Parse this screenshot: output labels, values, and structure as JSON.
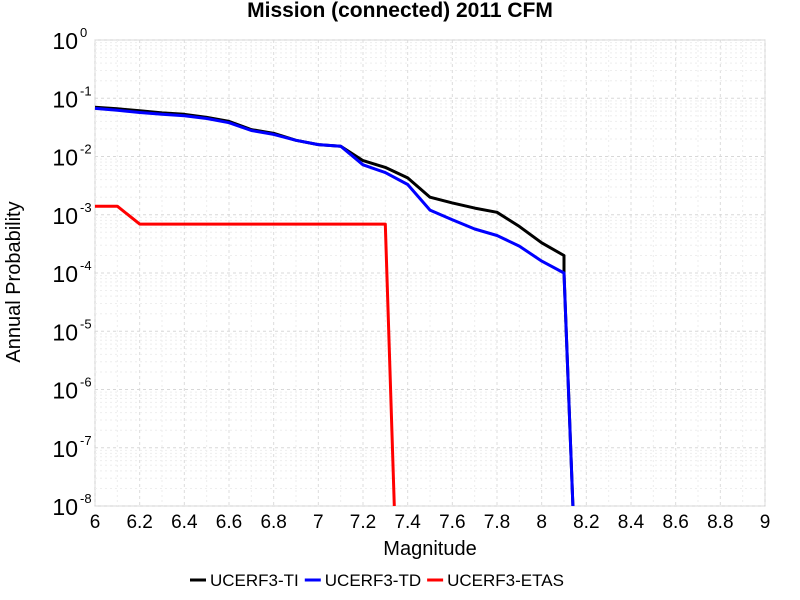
{
  "chart_data": {
    "type": "line",
    "title": "Mission (connected) 2011 CFM",
    "xlabel": "Magnitude",
    "ylabel": "Annual Probability",
    "xlim": [
      6,
      9
    ],
    "ylim": [
      1e-08,
      1
    ],
    "yscale": "log",
    "x_ticks": [
      "6",
      "6.2",
      "6.4",
      "6.6",
      "6.8",
      "7",
      "7.2",
      "7.4",
      "7.6",
      "7.8",
      "8",
      "8.2",
      "8.4",
      "8.6",
      "8.8",
      "9"
    ],
    "y_ticks": [
      {
        "base": "10",
        "exp": "-8"
      },
      {
        "base": "10",
        "exp": "-7"
      },
      {
        "base": "10",
        "exp": "-6"
      },
      {
        "base": "10",
        "exp": "-5"
      },
      {
        "base": "10",
        "exp": "-4"
      },
      {
        "base": "10",
        "exp": "-3"
      },
      {
        "base": "10",
        "exp": "-2"
      },
      {
        "base": "10",
        "exp": "-1"
      },
      {
        "base": "10",
        "exp": "0"
      }
    ],
    "grid": true,
    "legend_position": "bottom",
    "series": [
      {
        "name": "UCERF3-TI",
        "color": "#000000",
        "x": [
          6.0,
          6.1,
          6.2,
          6.3,
          6.4,
          6.5,
          6.6,
          6.7,
          6.8,
          6.9,
          7.0,
          7.1,
          7.2,
          7.3,
          7.4,
          7.5,
          7.6,
          7.7,
          7.8,
          7.9,
          8.0,
          8.1,
          8.1,
          8.14
        ],
        "y": [
          0.07,
          0.066,
          0.061,
          0.056,
          0.053,
          0.047,
          0.04,
          0.029,
          0.025,
          0.019,
          0.016,
          0.015,
          0.0085,
          0.0065,
          0.0043,
          0.002,
          0.0016,
          0.0013,
          0.0011,
          0.00063,
          0.00033,
          0.0002,
          0.0001,
          1e-08
        ]
      },
      {
        "name": "UCERF3-TD",
        "color": "#0000ff",
        "x": [
          6.0,
          6.1,
          6.2,
          6.3,
          6.4,
          6.5,
          6.6,
          6.7,
          6.8,
          6.9,
          7.0,
          7.1,
          7.2,
          7.3,
          7.4,
          7.5,
          7.6,
          7.7,
          7.8,
          7.9,
          8.0,
          8.1,
          8.14
        ],
        "y": [
          0.067,
          0.062,
          0.057,
          0.053,
          0.05,
          0.045,
          0.038,
          0.028,
          0.024,
          0.019,
          0.016,
          0.015,
          0.0072,
          0.0053,
          0.0033,
          0.0012,
          0.00082,
          0.00057,
          0.00044,
          0.00029,
          0.00016,
          0.0001,
          1e-08
        ]
      },
      {
        "name": "UCERF3-ETAS",
        "color": "#ff0000",
        "x": [
          6.0,
          6.1,
          6.2,
          6.3,
          6.4,
          6.5,
          6.6,
          6.7,
          6.8,
          6.9,
          7.0,
          7.1,
          7.2,
          7.3,
          7.34
        ],
        "y": [
          0.0014,
          0.0014,
          0.00069,
          0.00069,
          0.00069,
          0.00069,
          0.00069,
          0.00069,
          0.00069,
          0.00069,
          0.00069,
          0.00069,
          0.00069,
          0.00069,
          1e-08
        ]
      }
    ]
  }
}
